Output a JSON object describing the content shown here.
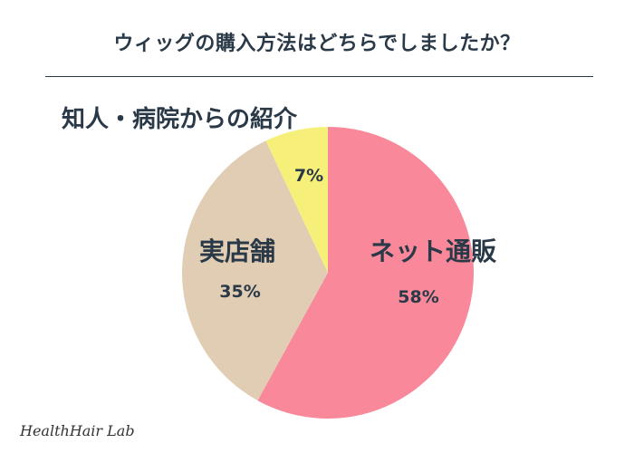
{
  "title": "ウィッグの購入方法はどちらでしましたか？",
  "watermark": "HealthHair Lab",
  "colors": {
    "title": "#2a3947",
    "label": "#2a3947",
    "divider": "#2a3947"
  },
  "chart_data": {
    "type": "pie",
    "title": "ウィッグの購入方法はどちらでしましたか？",
    "start": "top",
    "direction": "clockwise",
    "slices": [
      {
        "label": "ネット通販",
        "value": 58,
        "display": "58%",
        "color": "#f9899a"
      },
      {
        "label": "実店舗",
        "value": 35,
        "display": "35%",
        "color": "#e0cdb4"
      },
      {
        "label": "知人・病院からの紹介",
        "value": 7,
        "display": "7%",
        "color": "#f6f07a"
      }
    ]
  }
}
